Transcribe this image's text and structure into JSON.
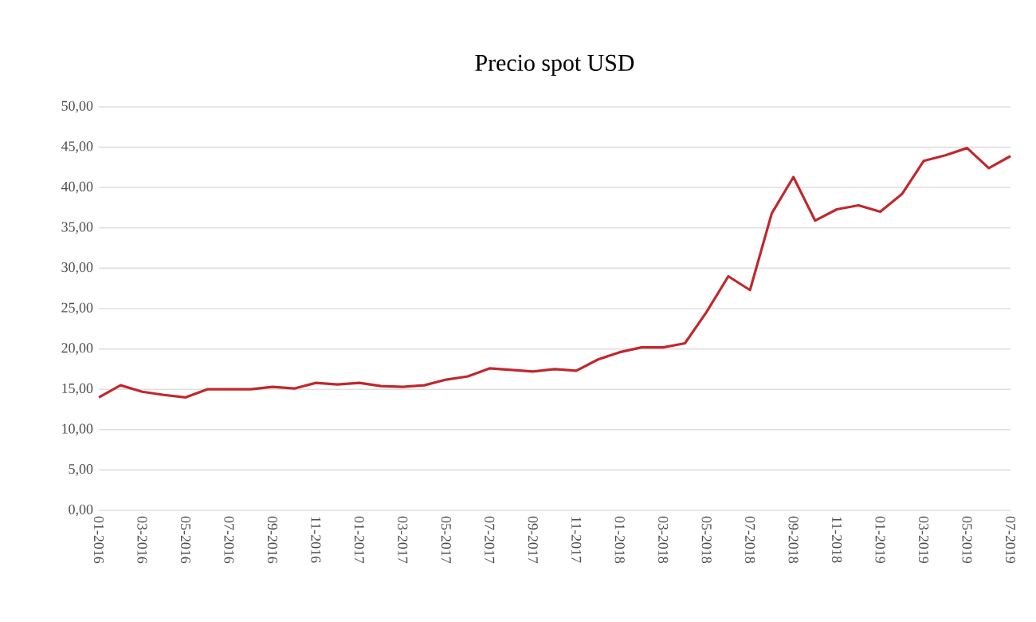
{
  "chart_data": {
    "type": "line",
    "title": "Precio spot USD",
    "categories": [
      "01-2016",
      null,
      "03-2016",
      null,
      "05-2016",
      null,
      "07-2016",
      null,
      "09-2016",
      null,
      "11-2016",
      null,
      "01-2017",
      null,
      "03-2017",
      null,
      "05-2017",
      null,
      "07-2017",
      null,
      "09-2017",
      null,
      "11-2017",
      null,
      "01-2018",
      null,
      "03-2018",
      null,
      "05-2018",
      null,
      "07-2018",
      null,
      "09-2018",
      null,
      "11-2018",
      null,
      "01-2019",
      null,
      "03-2019",
      null,
      "05-2019",
      null,
      "07-2019"
    ],
    "series": [
      {
        "color": "#c0282d",
        "values": [
          14.0,
          15.5,
          14.7,
          14.3,
          14.0,
          15.0,
          15.0,
          15.0,
          15.3,
          15.1,
          15.8,
          15.6,
          15.8,
          15.4,
          15.3,
          15.5,
          16.2,
          16.6,
          17.6,
          17.4,
          17.2,
          17.5,
          17.3,
          18.7,
          19.6,
          20.2,
          20.2,
          20.7,
          24.6,
          29.0,
          27.3,
          36.8,
          41.3,
          35.9,
          37.3,
          37.8,
          37.0,
          39.2,
          43.3,
          44.0,
          44.9,
          42.4,
          43.9
        ]
      }
    ],
    "ylim": [
      0,
      50
    ],
    "yticks": [
      {
        "value": 0,
        "label": "0,00"
      },
      {
        "value": 5,
        "label": "5,00"
      },
      {
        "value": 10,
        "label": "10,00"
      },
      {
        "value": 15,
        "label": "15,00"
      },
      {
        "value": 20,
        "label": "20,00"
      },
      {
        "value": 25,
        "label": "25,00"
      },
      {
        "value": 30,
        "label": "30,00"
      },
      {
        "value": 35,
        "label": "35,00"
      },
      {
        "value": 40,
        "label": "40,00"
      },
      {
        "value": 45,
        "label": "45,00"
      },
      {
        "value": 50,
        "label": "50,00"
      }
    ],
    "grid": "y",
    "marker": "none",
    "line_style": "solid"
  }
}
